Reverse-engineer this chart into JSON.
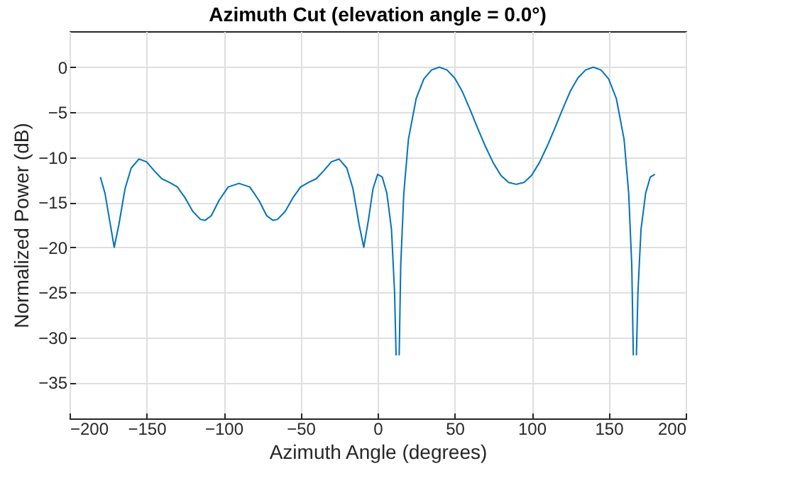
{
  "chart_data": {
    "type": "line",
    "title": "Azimuth Cut (elevation angle = 0.0°)",
    "xlabel": "Azimuth Angle (degrees)",
    "ylabel": "Normalized Power (dB)",
    "xlim": [
      -200,
      200
    ],
    "xticks": [
      -200,
      -150,
      -100,
      -50,
      0,
      50,
      100,
      150,
      200
    ],
    "ylim": [
      -39,
      4
    ],
    "yticks": [
      -35,
      -30,
      -25,
      -20,
      -15,
      -10,
      -5,
      0
    ],
    "grid": true,
    "x": [
      -180,
      -177,
      -174,
      -171,
      -168,
      -164,
      -160,
      -155,
      -150,
      -145,
      -140,
      -135,
      -130,
      -125,
      -120,
      -115,
      -112,
      -108,
      -103,
      -97,
      -90,
      -83,
      -77,
      -72,
      -68,
      -65,
      -60,
      -55,
      -50,
      -45,
      -40,
      -35,
      -30,
      -25,
      -20,
      -16,
      -12,
      -9,
      -6,
      -3,
      0,
      3,
      6,
      9,
      11,
      12,
      13,
      14,
      15,
      17,
      20,
      25,
      30,
      35,
      40,
      45,
      50,
      55,
      60,
      65,
      70,
      75,
      80,
      85,
      90,
      95,
      100,
      105,
      110,
      115,
      120,
      125,
      130,
      135,
      140,
      145,
      150,
      155,
      160,
      163,
      165,
      166,
      167,
      168,
      169,
      171,
      174,
      177,
      180
    ],
    "series": [
      {
        "color": "#0072bd",
        "values": [
          -12.2,
          -14,
          -17,
          -20,
          -17.5,
          -13.5,
          -11.2,
          -10.2,
          -10.5,
          -11.5,
          -12.4,
          -12.8,
          -13.3,
          -14.5,
          -16,
          -16.9,
          -17,
          -16.5,
          -14.8,
          -13.3,
          -12.9,
          -13.3,
          -14.8,
          -16.5,
          -17,
          -16.9,
          -16,
          -14.5,
          -13.3,
          -12.8,
          -12.4,
          -11.5,
          -10.5,
          -10.2,
          -11.2,
          -13.5,
          -17.5,
          -20,
          -17,
          -13.5,
          -11.9,
          -12.2,
          -14,
          -18,
          -25,
          -32,
          null,
          -32,
          -22,
          -14,
          -8,
          -3.5,
          -1.3,
          -0.3,
          0,
          -0.3,
          -1.2,
          -2.7,
          -4.7,
          -6.8,
          -8.8,
          -10.6,
          -12,
          -12.8,
          -13,
          -12.8,
          -12,
          -10.6,
          -8.8,
          -6.8,
          -4.7,
          -2.7,
          -1.2,
          -0.3,
          0,
          -0.3,
          -1.3,
          -3.5,
          -8,
          -14,
          -22,
          -32,
          null,
          -32,
          -25,
          -18,
          -14,
          -12.2,
          -11.9
        ]
      }
    ]
  }
}
